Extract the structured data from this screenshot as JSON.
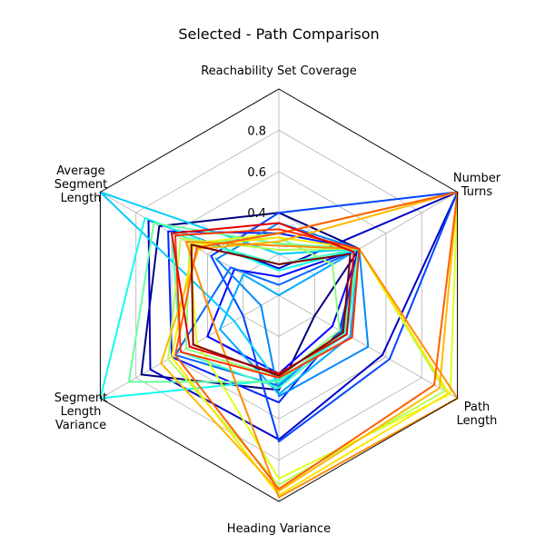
{
  "chart_data": {
    "type": "radar",
    "title": "Selected - Path Comparison",
    "axes": [
      {
        "label": "Reachability Set Coverage",
        "lines": [
          "Reachability Set Coverage"
        ]
      },
      {
        "label": "Number Turns",
        "lines": [
          "Number",
          "Turns"
        ]
      },
      {
        "label": "Path Length",
        "lines": [
          "Path",
          "Length"
        ]
      },
      {
        "label": "Heading Variance",
        "lines": [
          "Heading Variance"
        ]
      },
      {
        "label": "Segment Length Variance",
        "lines": [
          "Segment",
          "Length",
          "Variance"
        ]
      },
      {
        "label": "Average Segment Length",
        "lines": [
          "Average",
          "Segment",
          "Length"
        ]
      }
    ],
    "rlim": [
      0,
      1
    ],
    "ticks": [
      0.4,
      0.6,
      0.8
    ],
    "tick_labels": [
      "0.4",
      "0.6",
      "0.8"
    ],
    "grid": true,
    "colormap": "jet",
    "series": [
      {
        "color": "#00007f",
        "values": [
          0.4,
          0.45,
          0.2,
          0.46,
          0.77,
          0.67
        ]
      },
      {
        "color": "#0000c8",
        "values": [
          0.13,
          1.0,
          0.58,
          0.7,
          0.72,
          0.73
        ]
      },
      {
        "color": "#0000ff",
        "values": [
          0.09,
          0.45,
          0.3,
          0.38,
          0.4,
          0.25
        ]
      },
      {
        "color": "#0022ff",
        "values": [
          0.3,
          0.45,
          0.34,
          0.52,
          0.6,
          0.62
        ]
      },
      {
        "color": "#0044ff",
        "values": [
          0.4,
          1.0,
          0.62,
          0.71,
          0.2,
          0.38
        ]
      },
      {
        "color": "#0066ff",
        "values": [
          0.05,
          0.45,
          0.35,
          0.44,
          0.58,
          0.27
        ]
      },
      {
        "color": "#0088ff",
        "values": [
          0.35,
          0.45,
          0.5,
          0.49,
          0.1,
          0.35
        ]
      },
      {
        "color": "#00aaff",
        "values": [
          0.0,
          0.45,
          0.4,
          0.48,
          0.33,
          0.2
        ]
      },
      {
        "color": "#00ccff",
        "values": [
          0.2,
          0.45,
          0.36,
          0.43,
          0.25,
          1.0
        ]
      },
      {
        "color": "#13fcee",
        "values": [
          0.12,
          0.45,
          0.38,
          0.41,
          1.0,
          0.75
        ]
      },
      {
        "color": "#41ffc4",
        "values": [
          0.15,
          0.45,
          0.37,
          0.45,
          0.55,
          0.6
        ]
      },
      {
        "color": "#67ffa0",
        "values": [
          0.25,
          0.45,
          0.36,
          0.42,
          0.84,
          0.7
        ]
      },
      {
        "color": "#8fff78",
        "values": [
          0.28,
          0.3,
          0.34,
          0.4,
          0.52,
          0.5
        ]
      },
      {
        "color": "#b4ff52",
        "values": [
          0.22,
          0.45,
          0.93,
          0.92,
          0.62,
          0.55
        ]
      },
      {
        "color": "#dfff1e",
        "values": [
          0.3,
          1.0,
          0.96,
          0.89,
          0.46,
          0.5
        ]
      },
      {
        "color": "#ffe600",
        "values": [
          0.28,
          0.45,
          0.95,
          0.97,
          0.6,
          0.48
        ]
      },
      {
        "color": "#ffb900",
        "values": [
          0.26,
          1.0,
          0.9,
          0.95,
          0.66,
          0.45
        ]
      },
      {
        "color": "#ff8c00",
        "values": [
          0.24,
          0.45,
          1.0,
          0.98,
          0.35,
          0.52
        ]
      },
      {
        "color": "#ff5f00",
        "values": [
          0.3,
          1.0,
          0.87,
          0.94,
          0.58,
          0.46
        ]
      },
      {
        "color": "#ff3200",
        "values": [
          0.32,
          0.45,
          0.41,
          0.4,
          0.55,
          0.58
        ]
      },
      {
        "color": "#e50000",
        "values": [
          0.35,
          0.42,
          0.38,
          0.38,
          0.5,
          0.6
        ]
      },
      {
        "color": "#7f0000",
        "values": [
          0.15,
          0.4,
          0.36,
          0.39,
          0.48,
          0.49
        ]
      }
    ]
  }
}
